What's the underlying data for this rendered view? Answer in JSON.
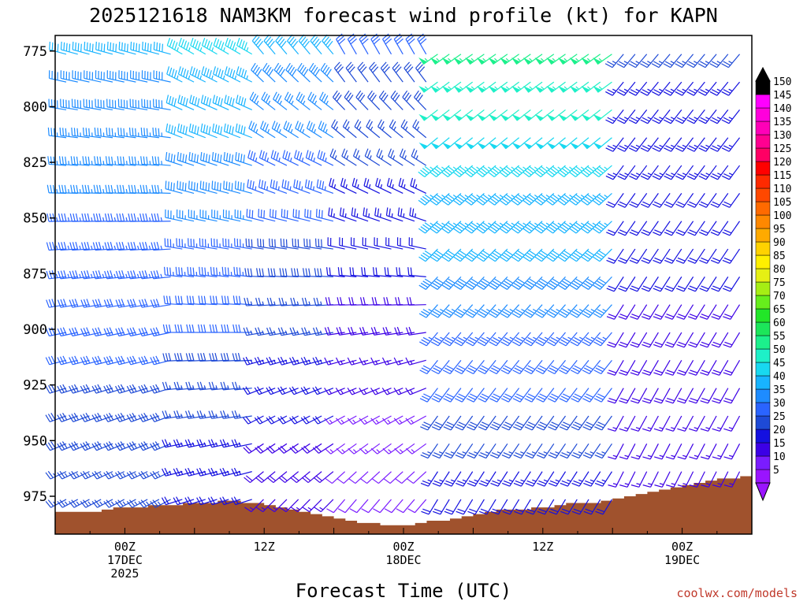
{
  "title": "2025121618 NAM3KM forecast wind profile (kt) for KAPN",
  "credit": "coolwx.com/models",
  "chart_data": {
    "type": "wind_barb_profile",
    "title": "2025121618 NAM3KM forecast wind profile (kt) for KAPN",
    "xlabel": "Forecast Time (UTC)",
    "ylabel": "",
    "y_ticks": [
      "775",
      "800",
      "825",
      "850",
      "875",
      "900",
      "925",
      "950",
      "975"
    ],
    "x_ticks": [
      {
        "hour": 6,
        "lines": [
          "00Z",
          "17DEC",
          "2025"
        ]
      },
      {
        "hour": 18,
        "lines": [
          "12Z"
        ]
      },
      {
        "hour": 30,
        "lines": [
          "00Z",
          "18DEC"
        ]
      },
      {
        "hour": 42,
        "lines": [
          "12Z"
        ]
      },
      {
        "hour": 54,
        "lines": [
          "00Z",
          "19DEC"
        ]
      }
    ],
    "xlim": [
      0,
      60
    ],
    "ylim": [
      768,
      992
    ],
    "levels_hpa": [
      775,
      800,
      825,
      850,
      875,
      900,
      925,
      950,
      975
    ],
    "colorbar": {
      "labels": [
        "5",
        "10",
        "15",
        "20",
        "25",
        "30",
        "35",
        "40",
        "45",
        "50",
        "55",
        "60",
        "65",
        "70",
        "75",
        "80",
        "85",
        "90",
        "95",
        "100",
        "105",
        "110",
        "115",
        "120",
        "125",
        "130",
        "135",
        "140",
        "145",
        "150"
      ],
      "colors": [
        "#9a14ff",
        "#7a1cff",
        "#3c00e6",
        "#1410e0",
        "#1e4ad6",
        "#2a64ff",
        "#1e8cff",
        "#18b4ff",
        "#18d8f0",
        "#1ef0c8",
        "#1cf08c",
        "#1ce65a",
        "#22e628",
        "#66ee1c",
        "#a6ee14",
        "#e6f014",
        "#fff000",
        "#ffd200",
        "#ffaa00",
        "#ff8800",
        "#ff6a00",
        "#ff4800",
        "#ff2a00",
        "#ff0000",
        "#ff0064",
        "#ff0090",
        "#ff00b8",
        "#ff00dc",
        "#ff00ff",
        "#000000"
      ]
    },
    "terrain_color": "#a0522d",
    "surface_pressure_hpa": [
      {
        "hour": 0,
        "p": 982
      },
      {
        "hour": 3,
        "p": 982
      },
      {
        "hour": 6,
        "p": 980
      },
      {
        "hour": 9,
        "p": 979
      },
      {
        "hour": 12,
        "p": 978
      },
      {
        "hour": 15,
        "p": 977
      },
      {
        "hour": 18,
        "p": 978
      },
      {
        "hour": 21,
        "p": 981
      },
      {
        "hour": 24,
        "p": 985
      },
      {
        "hour": 27,
        "p": 987
      },
      {
        "hour": 30,
        "p": 988
      },
      {
        "hour": 33,
        "p": 986
      },
      {
        "hour": 36,
        "p": 983
      },
      {
        "hour": 39,
        "p": 981
      },
      {
        "hour": 42,
        "p": 980
      },
      {
        "hour": 45,
        "p": 978
      },
      {
        "hour": 48,
        "p": 977
      },
      {
        "hour": 51,
        "p": 973
      },
      {
        "hour": 54,
        "p": 970
      },
      {
        "hour": 57,
        "p": 967
      },
      {
        "hour": 60,
        "p": 966
      }
    ],
    "wind_regimes": [
      {
        "hours": [
          0,
          10
        ],
        "bottom": {
          "dir": 240,
          "spd": 25
        },
        "top": {
          "dir": 285,
          "spd": 40
        }
      },
      {
        "hours": [
          10,
          17
        ],
        "bottom": {
          "dir": 250,
          "spd": 20
        },
        "top": {
          "dir": 300,
          "spd": 45
        }
      },
      {
        "hours": [
          17,
          24
        ],
        "bottom": {
          "dir": 220,
          "spd": 15
        },
        "top": {
          "dir": 320,
          "spd": 40
        }
      },
      {
        "hours": [
          24,
          32
        ],
        "bottom": {
          "dir": 215,
          "spd": 10
        },
        "top": {
          "dir": 330,
          "spd": 30
        }
      },
      {
        "hours": [
          32,
          48
        ],
        "bottom": {
          "dir": 210,
          "spd": 20
        },
        "top": {
          "dir": 235,
          "spd": 55
        }
      },
      {
        "hours": [
          48,
          60
        ],
        "bottom": {
          "dir": 205,
          "spd": 15
        },
        "top": {
          "dir": 220,
          "spd": 25
        }
      }
    ]
  }
}
